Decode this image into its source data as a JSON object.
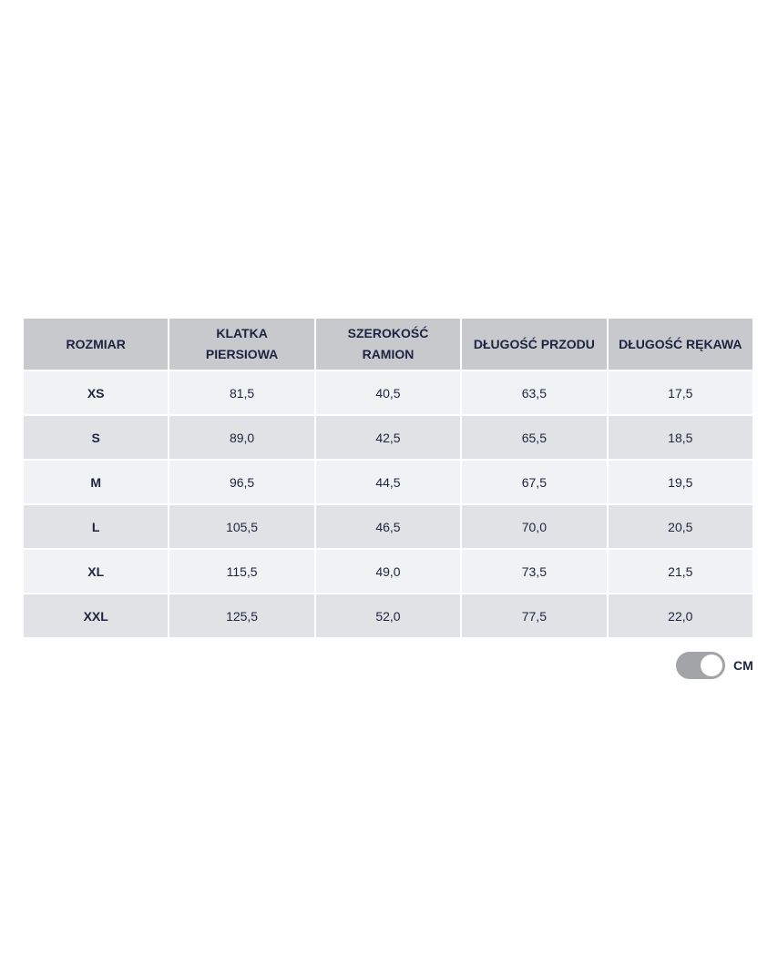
{
  "headers": [
    "ROZMIAR",
    "KLATKA PIERSIOWA",
    "SZEROKOŚĆ RAMION",
    "DŁUGOŚĆ PRZODU",
    "DŁUGOŚĆ RĘKAWA"
  ],
  "rows": [
    [
      "XS",
      "81,5",
      "40,5",
      "63,5",
      "17,5"
    ],
    [
      "S",
      "89,0",
      "42,5",
      "65,5",
      "18,5"
    ],
    [
      "M",
      "96,5",
      "44,5",
      "67,5",
      "19,5"
    ],
    [
      "L",
      "105,5",
      "46,5",
      "70,0",
      "20,5"
    ],
    [
      "XL",
      "115,5",
      "49,0",
      "73,5",
      "21,5"
    ],
    [
      "XXL",
      "125,5",
      "52,0",
      "77,5",
      "22,0"
    ]
  ],
  "unit_toggle": {
    "label": "CM",
    "on": true
  },
  "colors": {
    "text": "#1b2541",
    "header_bg": "#c8c9cd",
    "row_light": "#f1f2f3",
    "row_dark": "#e1e2e5",
    "toggle": "#a3a4a8"
  }
}
